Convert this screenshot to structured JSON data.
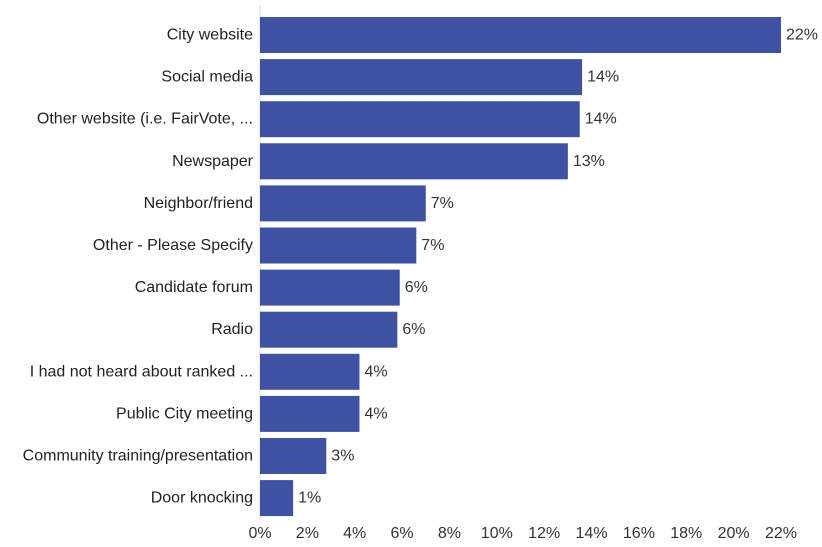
{
  "chart_data": {
    "type": "bar",
    "orientation": "horizontal",
    "title": "",
    "xlabel": "",
    "ylabel": "",
    "xlim": [
      0,
      22
    ],
    "grid": false,
    "categories": [
      "City website",
      "Social media",
      "Other website (i.e. FairVote, ...",
      "Newspaper",
      "Neighbor/friend",
      "Other - Please Specify",
      "Candidate forum",
      "Radio",
      "I had not heard about ranked ...",
      "Public City meeting",
      "Community training/presentation",
      "Door knocking"
    ],
    "values": [
      22.0,
      13.6,
      13.5,
      13.0,
      7.0,
      6.6,
      5.9,
      5.8,
      4.2,
      4.2,
      2.8,
      1.4
    ],
    "value_labels": [
      "22%",
      "14%",
      "14%",
      "13%",
      "7%",
      "7%",
      "6%",
      "6%",
      "4%",
      "4%",
      "3%",
      "1%"
    ],
    "x_ticks": [
      0,
      2,
      4,
      6,
      8,
      10,
      12,
      14,
      16,
      18,
      20,
      22
    ],
    "x_tick_labels": [
      "0%",
      "2%",
      "4%",
      "6%",
      "8%",
      "10%",
      "12%",
      "14%",
      "16%",
      "18%",
      "20%",
      "22%"
    ],
    "bar_color": "#3f51a1",
    "axis_color": "#d9d9d9"
  }
}
